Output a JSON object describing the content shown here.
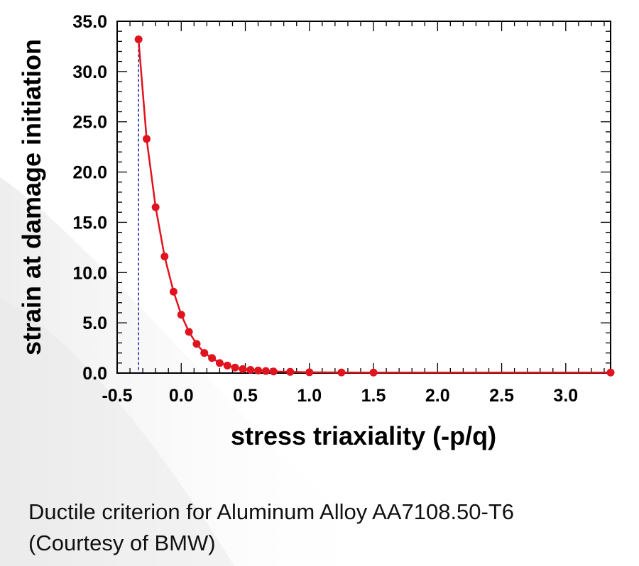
{
  "chart_data": {
    "type": "line",
    "xlabel": "stress triaxiality (-p/q)",
    "ylabel": "strain at damage initiation",
    "xlim": [
      -0.5,
      3.35
    ],
    "ylim": [
      0.0,
      35.0
    ],
    "x_ticks": [
      "-0.5",
      "0.0",
      "0.5",
      "1.0",
      "1.5",
      "2.0",
      "2.5",
      "3.0"
    ],
    "y_ticks": [
      "0.0",
      "5.0",
      "10.0",
      "15.0",
      "20.0",
      "25.0",
      "30.0",
      "35.0"
    ],
    "reference_line_x": -0.333,
    "grid": false,
    "series": [
      {
        "color": "#e0141e",
        "x": [
          -0.333,
          -0.27,
          -0.2,
          -0.13,
          -0.06,
          0.0,
          0.06,
          0.12,
          0.18,
          0.24,
          0.3,
          0.36,
          0.42,
          0.48,
          0.54,
          0.6,
          0.66,
          0.72,
          0.85,
          1.0,
          1.25,
          1.5,
          3.35
        ],
        "y": [
          33.2,
          23.3,
          16.5,
          11.6,
          8.1,
          5.8,
          4.1,
          2.9,
          2.0,
          1.5,
          1.0,
          0.75,
          0.55,
          0.4,
          0.32,
          0.26,
          0.2,
          0.16,
          0.12,
          0.08,
          0.06,
          0.05,
          0.05
        ]
      }
    ]
  },
  "caption": {
    "line1": "Ductile criterion for Aluminum Alloy AA7108.50-T6",
    "line2": "(Courtesy of BMW)"
  }
}
